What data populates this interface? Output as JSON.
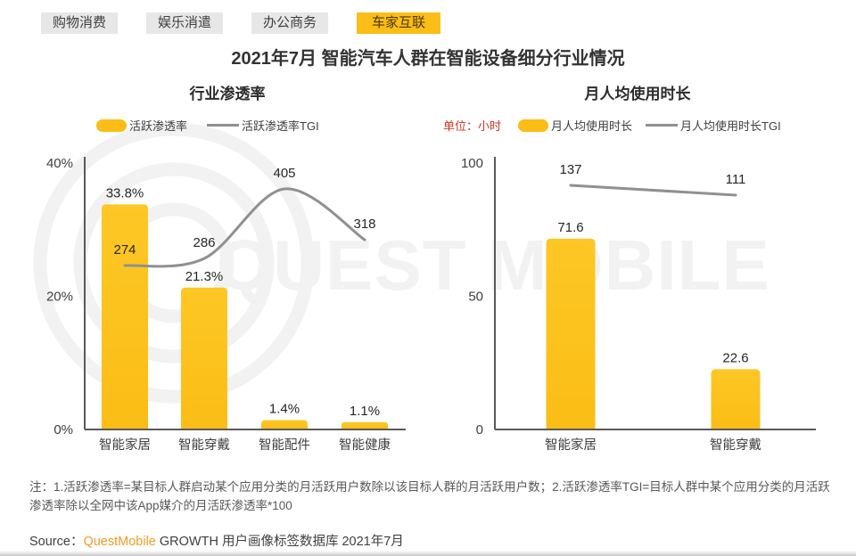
{
  "page": {
    "title": "2021年7月 智能汽车人群在智能设备细分行业情况"
  },
  "tabs": [
    {
      "label": "购物消费",
      "active": false
    },
    {
      "label": "娱乐消遣",
      "active": false
    },
    {
      "label": "办公商务",
      "active": false
    },
    {
      "label": "车家互联",
      "active": true
    }
  ],
  "chart_data": [
    {
      "type": "bar+line",
      "title": "行业渗透率",
      "categories": [
        "智能家居",
        "智能穿戴",
        "智能配件",
        "智能健康"
      ],
      "series": [
        {
          "name": "活跃渗透率",
          "type": "bar",
          "values": [
            33.8,
            21.3,
            1.4,
            1.1
          ],
          "labels": [
            "33.8%",
            "21.3%",
            "1.4%",
            "1.1%"
          ]
        },
        {
          "name": "活跃渗透率TGI",
          "type": "line",
          "values": [
            274,
            286,
            405,
            318
          ],
          "labels": [
            "274",
            "286",
            "405",
            "318"
          ]
        }
      ],
      "ylim": [
        0,
        40
      ],
      "yticks": [
        "0%",
        "20%",
        "40%"
      ],
      "legend_position": "top",
      "grid": false,
      "line_smooth": true
    },
    {
      "type": "bar+line",
      "title": "月人均使用时长",
      "unit": "单位：小时",
      "categories": [
        "智能家居",
        "智能穿戴"
      ],
      "series": [
        {
          "name": "月人均使用时长",
          "type": "bar",
          "values": [
            71.6,
            22.6
          ],
          "labels": [
            "71.6",
            "22.6"
          ]
        },
        {
          "name": "月人均使用时长TGI",
          "type": "line",
          "values": [
            137,
            111
          ],
          "labels": [
            "137",
            "111"
          ]
        }
      ],
      "ylim": [
        0,
        100
      ],
      "yticks": [
        "0",
        "50",
        "100"
      ],
      "legend_position": "top",
      "grid": false,
      "line_smooth": false
    }
  ],
  "note": "注：1.活跃渗透率=某目标人群启动某个应用分类的月活跃用户数除以该目标人群的月活跃用户数；2.活跃渗透率TGI=目标人群中某个应用分类的月活跃渗透率除以全网中该App媒介的月活跃渗透率*100",
  "source": {
    "prefix": "Source：",
    "brand": "QuestMobile",
    "rest": " GROWTH 用户画像标签数据库 2021年7月"
  },
  "watermark": {
    "text": "QUEST MOBILE"
  },
  "colors": {
    "bar_yellow": "#fbbd16",
    "bar_yellow_light": "#fdc725",
    "line_gray": "#909090",
    "axis_gray": "#595959",
    "label_dark": "#262626",
    "tick_gray": "#404040",
    "brand_orange": "#f59a23",
    "unit_red": "#ce3626"
  }
}
